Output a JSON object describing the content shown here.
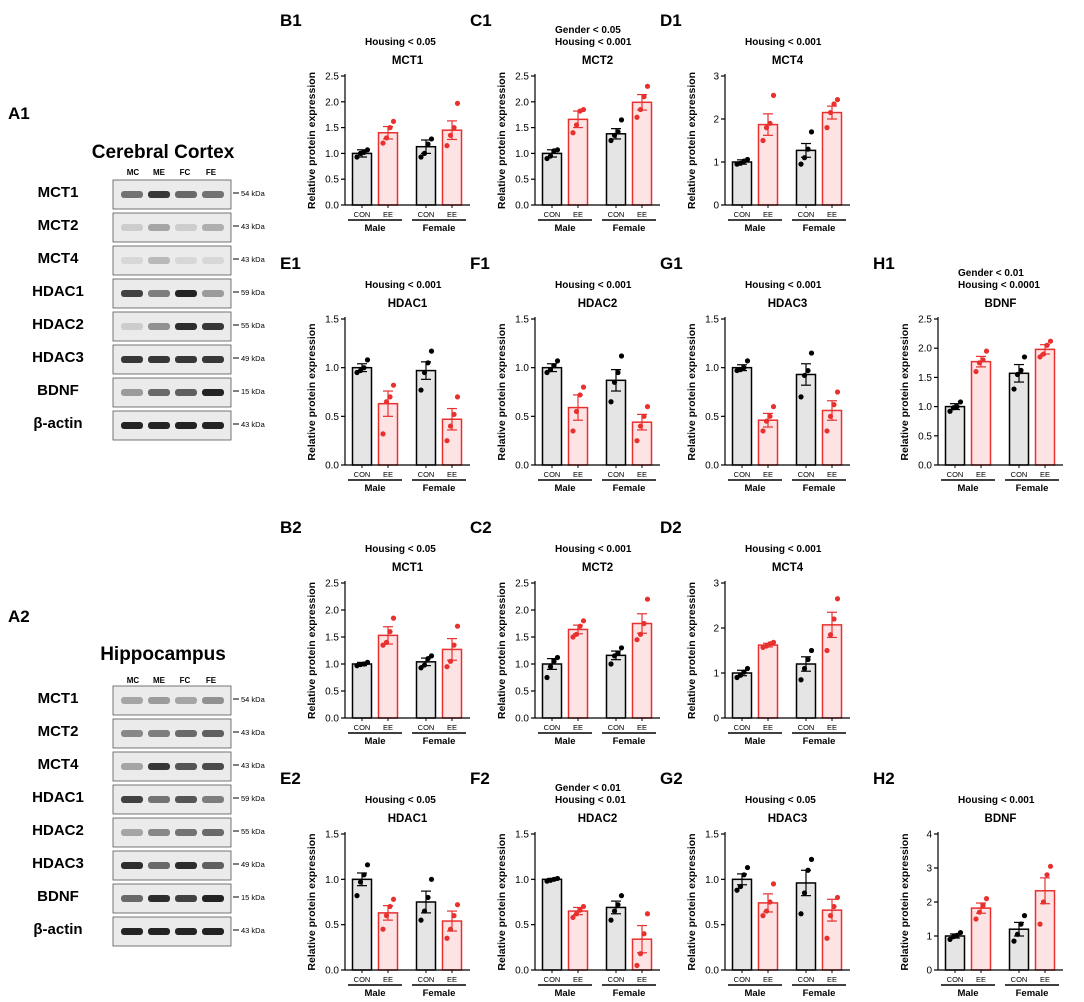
{
  "colors": {
    "con_fill": "#e5e5e5",
    "con_stroke": "#000000",
    "ee_fill": "#fde3e3",
    "ee_stroke": "#e8302f",
    "dot_con": "#000000",
    "dot_ee": "#e8302f"
  },
  "ylabel": "Relative protein expression",
  "xtick_con": "CON",
  "xtick_ee": "EE",
  "group_male": "Male",
  "group_female": "Female",
  "blots": [
    {
      "id": "A1",
      "title": "Cerebral Cortex",
      "lanes": [
        "MC",
        "ME",
        "FC",
        "FE"
      ],
      "rows": [
        {
          "label": "MCT1",
          "size": "54 kDa",
          "lanes": [
            0.55,
            0.85,
            0.6,
            0.55
          ]
        },
        {
          "label": "MCT2",
          "size": "43 kDa",
          "lanes": [
            0.1,
            0.3,
            0.1,
            0.25
          ]
        },
        {
          "label": "MCT4",
          "size": "43 kDa",
          "lanes": [
            0.05,
            0.2,
            0.05,
            0.05
          ]
        },
        {
          "label": "HDAC1",
          "size": "59 kDa",
          "lanes": [
            0.8,
            0.5,
            0.95,
            0.35
          ]
        },
        {
          "label": "HDAC2",
          "size": "55 kDa",
          "lanes": [
            0.1,
            0.4,
            0.9,
            0.85
          ]
        },
        {
          "label": "HDAC3",
          "size": "49 kDa",
          "lanes": [
            0.85,
            0.85,
            0.85,
            0.85
          ]
        },
        {
          "label": "BDNF",
          "size": "15 kDa",
          "lanes": [
            0.35,
            0.6,
            0.65,
            0.95
          ]
        },
        {
          "label": "β-actin",
          "size": "43 kDa",
          "lanes": [
            0.95,
            0.95,
            0.95,
            0.95
          ]
        }
      ]
    },
    {
      "id": "A2",
      "title": "Hippocampus",
      "lanes": [
        "MC",
        "ME",
        "FC",
        "FE"
      ],
      "rows": [
        {
          "label": "MCT1",
          "size": "54 kDa",
          "lanes": [
            0.3,
            0.35,
            0.3,
            0.4
          ]
        },
        {
          "label": "MCT2",
          "size": "43 kDa",
          "lanes": [
            0.45,
            0.5,
            0.6,
            0.65
          ]
        },
        {
          "label": "MCT4",
          "size": "43 kDa",
          "lanes": [
            0.3,
            0.85,
            0.7,
            0.75
          ]
        },
        {
          "label": "HDAC1",
          "size": "59 kDa",
          "lanes": [
            0.8,
            0.55,
            0.7,
            0.5
          ]
        },
        {
          "label": "HDAC2",
          "size": "55 kDa",
          "lanes": [
            0.3,
            0.45,
            0.55,
            0.6
          ]
        },
        {
          "label": "HDAC3",
          "size": "49 kDa",
          "lanes": [
            0.9,
            0.6,
            0.9,
            0.65
          ]
        },
        {
          "label": "BDNF",
          "size": "15 kDa",
          "lanes": [
            0.6,
            0.9,
            0.8,
            0.95
          ]
        },
        {
          "label": "β-actin",
          "size": "43 kDa",
          "lanes": [
            0.95,
            0.95,
            0.95,
            0.95
          ]
        }
      ]
    }
  ],
  "chart_data": [
    {
      "id": "B1",
      "type": "bar",
      "title": "MCT1",
      "stats": [
        "Housing < 0.05"
      ],
      "ylim": [
        0,
        2.5
      ],
      "yticks": [
        "0.0",
        "0.5",
        "1.0",
        "1.5",
        "2.0",
        "2.5"
      ],
      "categories": [
        "CON",
        "EE",
        "CON",
        "EE"
      ],
      "groups": [
        "Male",
        "Female"
      ],
      "values": [
        1.0,
        1.4,
        1.13,
        1.45
      ],
      "errors": [
        0.07,
        0.12,
        0.13,
        0.18
      ],
      "points": [
        [
          0.93,
          1.0,
          1.02,
          1.07
        ],
        [
          1.2,
          1.3,
          1.5,
          1.62
        ],
        [
          0.93,
          1.0,
          1.18,
          1.28
        ],
        [
          1.15,
          1.35,
          1.5,
          1.97
        ]
      ]
    },
    {
      "id": "C1",
      "type": "bar",
      "title": "MCT2",
      "stats": [
        "Gender < 0.05",
        "Housing < 0.001"
      ],
      "ylim": [
        0,
        2.5
      ],
      "yticks": [
        "0.0",
        "0.5",
        "1.0",
        "1.5",
        "2.0",
        "2.5"
      ],
      "categories": [
        "CON",
        "EE",
        "CON",
        "EE"
      ],
      "groups": [
        "Male",
        "Female"
      ],
      "values": [
        1.0,
        1.66,
        1.38,
        1.99
      ],
      "errors": [
        0.07,
        0.16,
        0.1,
        0.15
      ],
      "points": [
        [
          0.9,
          0.95,
          1.05,
          1.07
        ],
        [
          1.4,
          1.55,
          1.82,
          1.85
        ],
        [
          1.25,
          1.35,
          1.42,
          1.65
        ],
        [
          1.7,
          1.85,
          2.1,
          2.3
        ]
      ]
    },
    {
      "id": "D1",
      "type": "bar",
      "title": "MCT4",
      "stats": [
        "Housing < 0.001"
      ],
      "ylim": [
        0,
        3
      ],
      "yticks": [
        "0",
        "1",
        "2",
        "3"
      ],
      "categories": [
        "CON",
        "EE",
        "CON",
        "EE"
      ],
      "groups": [
        "Male",
        "Female"
      ],
      "values": [
        1.0,
        1.87,
        1.27,
        2.15
      ],
      "errors": [
        0.05,
        0.25,
        0.16,
        0.15
      ],
      "points": [
        [
          0.95,
          0.97,
          1.02,
          1.06
        ],
        [
          1.5,
          1.8,
          1.9,
          2.55
        ],
        [
          0.95,
          1.1,
          1.3,
          1.7
        ],
        [
          1.8,
          2.15,
          2.35,
          2.45
        ]
      ]
    },
    {
      "id": "E1",
      "type": "bar",
      "title": "HDAC1",
      "stats": [
        "Housing < 0.001"
      ],
      "ylim": [
        0,
        1.5
      ],
      "yticks": [
        "0.0",
        "0.5",
        "1.0",
        "1.5"
      ],
      "categories": [
        "CON",
        "EE",
        "CON",
        "EE"
      ],
      "groups": [
        "Male",
        "Female"
      ],
      "values": [
        1.0,
        0.63,
        0.97,
        0.47
      ],
      "errors": [
        0.04,
        0.13,
        0.09,
        0.11
      ],
      "points": [
        [
          0.95,
          0.97,
          1.0,
          1.08
        ],
        [
          0.32,
          0.65,
          0.7,
          0.82
        ],
        [
          0.77,
          0.95,
          1.05,
          1.17
        ],
        [
          0.25,
          0.4,
          0.52,
          0.7
        ]
      ]
    },
    {
      "id": "F1",
      "type": "bar",
      "title": "HDAC2",
      "stats": [
        "Housing < 0.001"
      ],
      "ylim": [
        0,
        1.5
      ],
      "yticks": [
        "0.0",
        "0.5",
        "1.0",
        "1.5"
      ],
      "categories": [
        "CON",
        "EE",
        "CON",
        "EE"
      ],
      "groups": [
        "Male",
        "Female"
      ],
      "values": [
        1.0,
        0.59,
        0.87,
        0.44
      ],
      "errors": [
        0.04,
        0.13,
        0.11,
        0.08
      ],
      "points": [
        [
          0.95,
          0.98,
          1.02,
          1.07
        ],
        [
          0.35,
          0.55,
          0.72,
          0.8
        ],
        [
          0.65,
          0.85,
          0.95,
          1.12
        ],
        [
          0.25,
          0.4,
          0.5,
          0.6
        ]
      ]
    },
    {
      "id": "G1",
      "type": "bar",
      "title": "HDAC3",
      "stats": [
        "Housing < 0.001"
      ],
      "ylim": [
        0,
        1.5
      ],
      "yticks": [
        "0.0",
        "0.5",
        "1.0",
        "1.5"
      ],
      "categories": [
        "CON",
        "EE",
        "CON",
        "EE"
      ],
      "groups": [
        "Male",
        "Female"
      ],
      "values": [
        1.0,
        0.46,
        0.93,
        0.56
      ],
      "errors": [
        0.03,
        0.07,
        0.11,
        0.1
      ],
      "points": [
        [
          0.97,
          0.98,
          1.0,
          1.07
        ],
        [
          0.35,
          0.45,
          0.5,
          0.6
        ],
        [
          0.7,
          0.92,
          0.97,
          1.15
        ],
        [
          0.35,
          0.5,
          0.62,
          0.75
        ]
      ]
    },
    {
      "id": "H1",
      "type": "bar",
      "title": "BDNF",
      "stats": [
        "Gender < 0.01",
        "Housing < 0.0001"
      ],
      "ylim": [
        0,
        2.5
      ],
      "yticks": [
        "0.0",
        "0.5",
        "1.0",
        "1.5",
        "2.0",
        "2.5"
      ],
      "categories": [
        "CON",
        "EE",
        "CON",
        "EE"
      ],
      "groups": [
        "Male",
        "Female"
      ],
      "values": [
        1.0,
        1.77,
        1.57,
        1.98
      ],
      "errors": [
        0.05,
        0.09,
        0.15,
        0.08
      ],
      "points": [
        [
          0.92,
          0.98,
          1.0,
          1.08
        ],
        [
          1.6,
          1.75,
          1.8,
          1.95
        ],
        [
          1.3,
          1.55,
          1.62,
          1.85
        ],
        [
          1.85,
          1.9,
          2.05,
          2.12
        ]
      ]
    },
    {
      "id": "B2",
      "type": "bar",
      "title": "MCT1",
      "stats": [
        "Housing < 0.05"
      ],
      "ylim": [
        0,
        2.5
      ],
      "yticks": [
        "0.0",
        "0.5",
        "1.0",
        "1.5",
        "2.0",
        "2.5"
      ],
      "categories": [
        "CON",
        "EE",
        "CON",
        "EE"
      ],
      "groups": [
        "Male",
        "Female"
      ],
      "values": [
        1.0,
        1.53,
        1.04,
        1.27
      ],
      "errors": [
        0.03,
        0.16,
        0.07,
        0.2
      ],
      "points": [
        [
          0.97,
          0.99,
          1.0,
          1.03
        ],
        [
          1.35,
          1.4,
          1.6,
          1.85
        ],
        [
          0.93,
          0.98,
          1.1,
          1.15
        ],
        [
          0.95,
          1.05,
          1.35,
          1.7
        ]
      ]
    },
    {
      "id": "C2",
      "type": "bar",
      "title": "MCT2",
      "stats": [
        "Housing < 0.001"
      ],
      "ylim": [
        0,
        2.5
      ],
      "yticks": [
        "0.0",
        "0.5",
        "1.0",
        "1.5",
        "2.0",
        "2.5"
      ],
      "categories": [
        "CON",
        "EE",
        "CON",
        "EE"
      ],
      "groups": [
        "Male",
        "Female"
      ],
      "values": [
        1.0,
        1.64,
        1.16,
        1.75
      ],
      "errors": [
        0.1,
        0.08,
        0.08,
        0.18
      ],
      "points": [
        [
          0.75,
          0.95,
          1.05,
          1.12
        ],
        [
          1.5,
          1.55,
          1.7,
          1.8
        ],
        [
          1.0,
          1.15,
          1.2,
          1.3
        ],
        [
          1.45,
          1.55,
          1.75,
          2.2
        ]
      ]
    },
    {
      "id": "D2",
      "type": "bar",
      "title": "MCT4",
      "stats": [
        "Housing < 0.001"
      ],
      "ylim": [
        0,
        3
      ],
      "yticks": [
        "0",
        "1",
        "2",
        "3"
      ],
      "categories": [
        "CON",
        "EE",
        "CON",
        "EE"
      ],
      "groups": [
        "Male",
        "Female"
      ],
      "values": [
        1.0,
        1.62,
        1.2,
        2.07
      ],
      "errors": [
        0.06,
        0.04,
        0.16,
        0.28
      ],
      "points": [
        [
          0.9,
          0.95,
          1.02,
          1.1
        ],
        [
          1.57,
          1.6,
          1.65,
          1.68
        ],
        [
          0.85,
          1.1,
          1.3,
          1.5
        ],
        [
          1.5,
          1.85,
          2.2,
          2.65
        ]
      ]
    },
    {
      "id": "E2",
      "type": "bar",
      "title": "HDAC1",
      "stats": [
        "Housing < 0.05"
      ],
      "ylim": [
        0,
        1.5
      ],
      "yticks": [
        "0.0",
        "0.5",
        "1.0",
        "1.5"
      ],
      "categories": [
        "CON",
        "EE",
        "CON",
        "EE"
      ],
      "groups": [
        "Male",
        "Female"
      ],
      "values": [
        1.0,
        0.63,
        0.75,
        0.54
      ],
      "errors": [
        0.07,
        0.08,
        0.12,
        0.11
      ],
      "points": [
        [
          0.82,
          0.97,
          1.05,
          1.16
        ],
        [
          0.45,
          0.6,
          0.7,
          0.78
        ],
        [
          0.55,
          0.65,
          0.8,
          1.0
        ],
        [
          0.35,
          0.45,
          0.6,
          0.72
        ]
      ]
    },
    {
      "id": "F2",
      "type": "bar",
      "title": "HDAC2",
      "stats": [
        "Gender < 0.01",
        "Housing < 0.01"
      ],
      "ylim": [
        0,
        1.5
      ],
      "yticks": [
        "0.0",
        "0.5",
        "1.0",
        "1.5"
      ],
      "categories": [
        "CON",
        "EE",
        "CON",
        "EE"
      ],
      "groups": [
        "Male",
        "Female"
      ],
      "values": [
        1.0,
        0.65,
        0.69,
        0.34
      ],
      "errors": [
        0.01,
        0.04,
        0.07,
        0.15
      ],
      "points": [
        [
          0.98,
          0.99,
          1.0,
          1.01
        ],
        [
          0.58,
          0.62,
          0.66,
          0.7
        ],
        [
          0.55,
          0.65,
          0.72,
          0.82
        ],
        [
          0.05,
          0.18,
          0.4,
          0.62
        ]
      ]
    },
    {
      "id": "G2",
      "type": "bar",
      "title": "HDAC3",
      "stats": [
        "Housing < 0.05"
      ],
      "ylim": [
        0,
        1.5
      ],
      "yticks": [
        "0.0",
        "0.5",
        "1.0",
        "1.5"
      ],
      "categories": [
        "CON",
        "EE",
        "CON",
        "EE"
      ],
      "groups": [
        "Male",
        "Female"
      ],
      "values": [
        1.0,
        0.74,
        0.96,
        0.66
      ],
      "errors": [
        0.06,
        0.1,
        0.14,
        0.12
      ],
      "points": [
        [
          0.88,
          0.92,
          1.05,
          1.13
        ],
        [
          0.6,
          0.65,
          0.75,
          0.95
        ],
        [
          0.62,
          0.85,
          1.1,
          1.22
        ],
        [
          0.35,
          0.6,
          0.7,
          0.8
        ]
      ]
    },
    {
      "id": "H2",
      "type": "bar",
      "title": "BDNF",
      "stats": [
        "Housing < 0.001"
      ],
      "ylim": [
        0,
        4
      ],
      "yticks": [
        "0",
        "1",
        "2",
        "3",
        "4"
      ],
      "categories": [
        "CON",
        "EE",
        "CON",
        "EE"
      ],
      "groups": [
        "Male",
        "Female"
      ],
      "values": [
        1.0,
        1.82,
        1.2,
        2.33
      ],
      "errors": [
        0.06,
        0.15,
        0.2,
        0.38
      ],
      "points": [
        [
          0.9,
          0.98,
          1.02,
          1.1
        ],
        [
          1.5,
          1.7,
          1.9,
          2.1
        ],
        [
          0.85,
          1.05,
          1.35,
          1.6
        ],
        [
          1.35,
          2.0,
          2.8,
          3.05
        ]
      ]
    }
  ]
}
